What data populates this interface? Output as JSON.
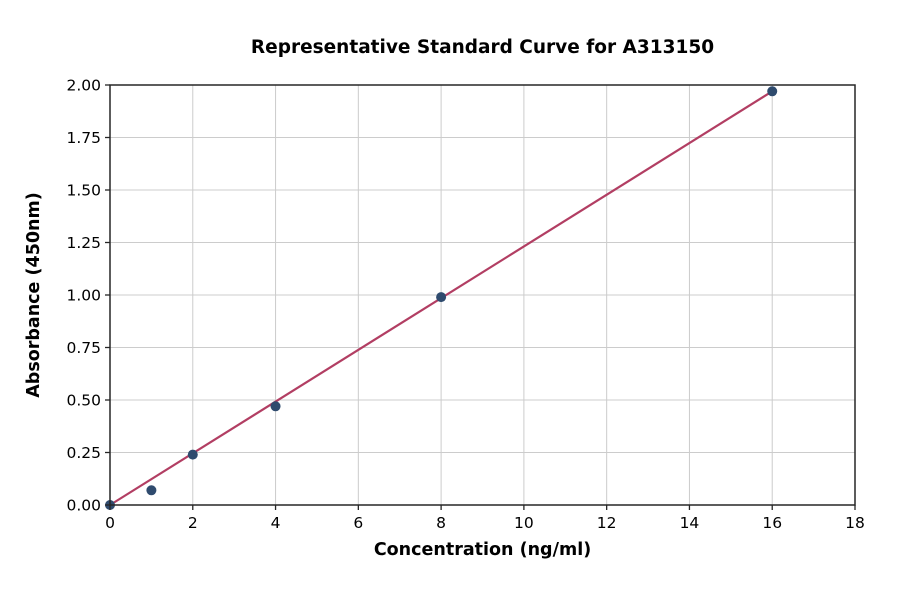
{
  "chart_data": {
    "type": "scatter",
    "title": "Representative Standard Curve for A313150",
    "xlabel": "Concentration (ng/ml)",
    "ylabel": "Absorbance (450nm)",
    "x": [
      0,
      1,
      2,
      4,
      8,
      16
    ],
    "y": [
      0.0,
      0.07,
      0.24,
      0.47,
      0.99,
      1.97
    ],
    "trendline": {
      "type": "linear",
      "x": [
        0,
        16
      ],
      "y": [
        0.0,
        1.97
      ]
    },
    "xlim": [
      0,
      18
    ],
    "ylim": [
      0,
      2.0
    ],
    "xticks": [
      0,
      2,
      4,
      6,
      8,
      10,
      12,
      14,
      16,
      18
    ],
    "xtick_labels": [
      "0",
      "2",
      "4",
      "6",
      "8",
      "10",
      "12",
      "14",
      "16",
      "18"
    ],
    "yticks": [
      0.0,
      0.25,
      0.5,
      0.75,
      1.0,
      1.25,
      1.5,
      1.75,
      2.0
    ],
    "ytick_labels": [
      "0.00",
      "0.25",
      "0.50",
      "0.75",
      "1.00",
      "1.25",
      "1.50",
      "1.75",
      "2.00"
    ],
    "grid": true,
    "legend": "none",
    "colors": {
      "marker": "#2f4b6e",
      "line": "#b23e63",
      "grid": "#cccccc",
      "spine": "#262626",
      "text": "#000000",
      "background": "#ffffff"
    },
    "marker_radius": 5,
    "line_width": 2.2
  }
}
